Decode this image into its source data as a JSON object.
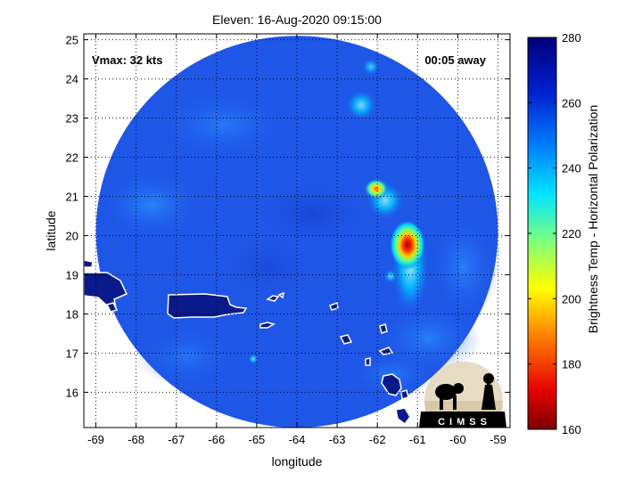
{
  "title": "Eleven: 16-Aug-2020 09:15:00",
  "vmax_label": "Vmax: 32 kts",
  "time_away_label": "00:05 away",
  "xlabel": "longitude",
  "ylabel": "latitude",
  "x_ticks": [
    "-69",
    "-68",
    "-67",
    "-66",
    "-65",
    "-64",
    "-63",
    "-62",
    "-61",
    "-60",
    "-59"
  ],
  "y_ticks": [
    "16",
    "17",
    "18",
    "19",
    "20",
    "21",
    "22",
    "23",
    "24",
    "25"
  ],
  "colorbar": {
    "label": "Brightness Temp - Horizontal Polarization",
    "ticks": [
      "160",
      "180",
      "200",
      "220",
      "240",
      "260",
      "280"
    ],
    "range": [
      160,
      280
    ],
    "colors": [
      "#7a0000",
      "#e60000",
      "#ff8c00",
      "#ffff00",
      "#7dff7d",
      "#00e5ff",
      "#0080ff",
      "#0020d0",
      "#00007a"
    ]
  },
  "logo_text": "CIMSS",
  "map": {
    "xlim": [
      -69.3,
      -58.7
    ],
    "ylim": [
      15.1,
      25.15
    ],
    "swath_center": [
      -64.0,
      20.1
    ],
    "swath_radius_deg": 5.0,
    "background_color": "#1e56e6",
    "hot_spots": [
      {
        "lon": -61.1,
        "lat": 19.8,
        "tb": 185
      },
      {
        "lon": -62.0,
        "lat": 21.2,
        "tb": 200
      },
      {
        "lon": -62.3,
        "lat": 23.5,
        "tb": 240
      },
      {
        "lon": -64.9,
        "lat": 16.9,
        "tb": 245
      }
    ]
  }
}
